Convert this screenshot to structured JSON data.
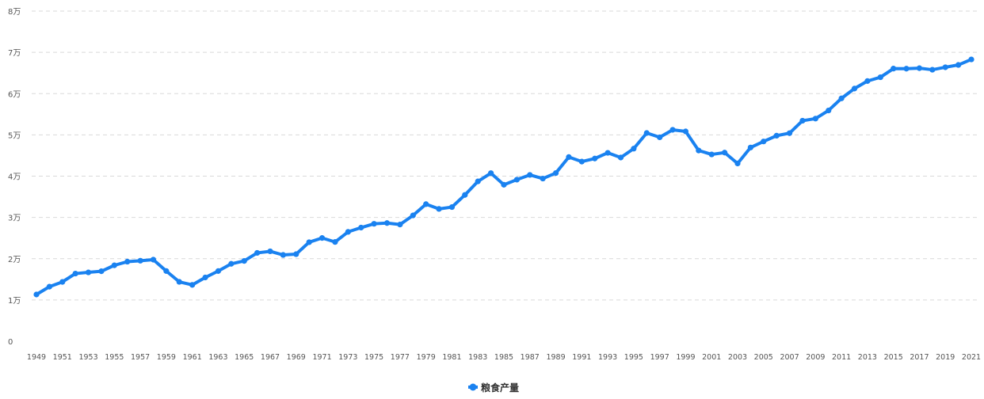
{
  "chart_data": {
    "type": "line",
    "title": "",
    "xlabel": "",
    "ylabel": "",
    "x": [
      1949,
      1950,
      1951,
      1952,
      1953,
      1954,
      1955,
      1956,
      1957,
      1958,
      1959,
      1960,
      1961,
      1962,
      1963,
      1964,
      1965,
      1966,
      1967,
      1968,
      1969,
      1970,
      1971,
      1972,
      1973,
      1974,
      1975,
      1976,
      1977,
      1978,
      1979,
      1980,
      1981,
      1982,
      1983,
      1984,
      1985,
      1986,
      1987,
      1988,
      1989,
      1990,
      1991,
      1992,
      1993,
      1994,
      1995,
      1996,
      1997,
      1998,
      1999,
      2000,
      2001,
      2002,
      2003,
      2004,
      2005,
      2006,
      2007,
      2008,
      2009,
      2010,
      2011,
      2012,
      2013,
      2014,
      2015,
      2016,
      2017,
      2018,
      2019,
      2020,
      2021
    ],
    "x_tick_labels": [
      "1949",
      "1951",
      "1953",
      "1955",
      "1957",
      "1959",
      "1961",
      "1963",
      "1965",
      "1967",
      "1969",
      "1971",
      "1973",
      "1975",
      "1977",
      "1979",
      "1981",
      "1983",
      "1985",
      "1987",
      "1989",
      "1991",
      "1993",
      "1995",
      "1997",
      "1999",
      "2001",
      "2003",
      "2005",
      "2007",
      "2009",
      "2011",
      "2013",
      "2015",
      "2017",
      "2019",
      "2021"
    ],
    "y_ticks": [
      0,
      10000,
      20000,
      30000,
      40000,
      50000,
      60000,
      70000,
      80000
    ],
    "y_tick_labels": [
      "0",
      "1万",
      "2万",
      "3万",
      "4万",
      "5万",
      "6万",
      "7万",
      "8万"
    ],
    "ylim": [
      0,
      80000
    ],
    "grid": true,
    "legend_position": "bottom-center",
    "series": [
      {
        "name": "粮食产量",
        "color": "#1a82f0",
        "values": [
          11318,
          13213,
          14369,
          16392,
          16683,
          16952,
          18394,
          19275,
          19505,
          19766,
          17000,
          14385,
          13650,
          15441,
          17000,
          18750,
          19453,
          21400,
          21782,
          20906,
          21097,
          23996,
          25014,
          24048,
          26494,
          27527,
          28452,
          28631,
          28273,
          30477,
          33212,
          32056,
          32502,
          35450,
          38728,
          40731,
          37911,
          39151,
          40298,
          39408,
          40755,
          44624,
          43529,
          44266,
          45649,
          44510,
          46662,
          50454,
          49417,
          51230,
          50839,
          46218,
          45264,
          45706,
          43070,
          46947,
          48402,
          49804,
          50414,
          53434,
          53941,
          55911,
          58849,
          61223,
          63048,
          63965,
          66060,
          66044,
          66161,
          65789,
          66384,
          66949,
          68285
        ]
      }
    ]
  }
}
